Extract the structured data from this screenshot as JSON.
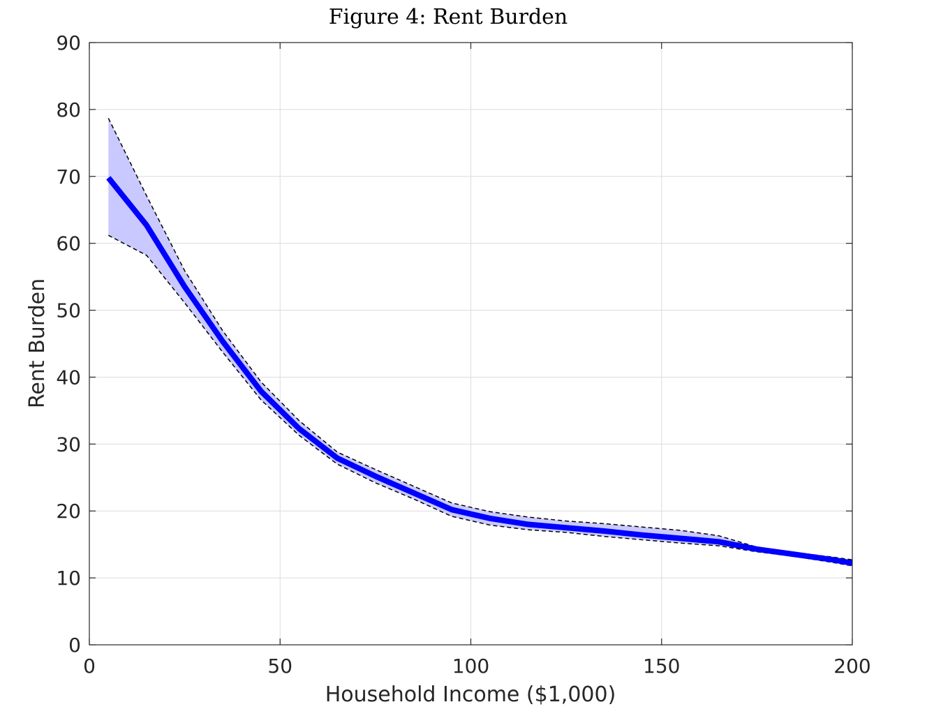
{
  "chart_data": {
    "type": "line",
    "title": "Figure 4: Rent Burden",
    "xlabel": "Household Income ($1,000)",
    "ylabel": "Rent Burden",
    "xlim": [
      0,
      200
    ],
    "ylim": [
      0,
      90
    ],
    "xticks": [
      "0",
      "50",
      "100",
      "150",
      "200"
    ],
    "yticks": [
      "0",
      "10",
      "20",
      "30",
      "40",
      "50",
      "60",
      "70",
      "80",
      "90"
    ],
    "grid": true,
    "x": [
      5,
      15,
      25,
      35,
      45,
      55,
      65,
      75,
      85,
      95,
      105,
      115,
      125,
      135,
      145,
      155,
      165,
      175,
      185,
      195,
      200
    ],
    "series": [
      {
        "role": "estimate",
        "values": [
          69.8,
          62.7,
          53.5,
          45.3,
          37.9,
          32.3,
          27.9,
          25.2,
          22.7,
          20.2,
          18.9,
          18.0,
          17.5,
          17.0,
          16.4,
          15.9,
          15.4,
          14.3,
          13.5,
          12.7,
          12.2
        ],
        "color": "#0000ff"
      },
      {
        "role": "upper-bound",
        "values": [
          78.7,
          67.1,
          55.9,
          46.9,
          39.3,
          33.5,
          28.8,
          26.2,
          23.7,
          21.2,
          19.9,
          19.1,
          18.5,
          18.1,
          17.6,
          17.1,
          16.3,
          14.6,
          13.8,
          13.1,
          12.7
        ],
        "color": "#000000"
      },
      {
        "role": "lower-bound",
        "values": [
          61.2,
          58.2,
          51.1,
          43.7,
          36.6,
          31.3,
          27.0,
          24.2,
          21.8,
          19.2,
          17.9,
          17.2,
          16.8,
          16.2,
          15.7,
          15.2,
          14.8,
          13.9,
          13.2,
          12.3,
          11.8
        ],
        "color": "#000000"
      }
    ],
    "band_fill": "#c9c9ff"
  }
}
